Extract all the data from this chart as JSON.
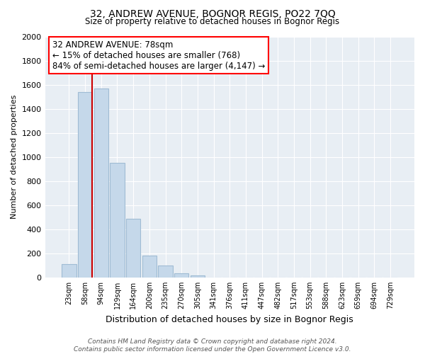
{
  "title": "32, ANDREW AVENUE, BOGNOR REGIS, PO22 7QQ",
  "subtitle": "Size of property relative to detached houses in Bognor Regis",
  "xlabel": "Distribution of detached houses by size in Bognor Regis",
  "ylabel": "Number of detached properties",
  "bar_labels": [
    "23sqm",
    "58sqm",
    "94sqm",
    "129sqm",
    "164sqm",
    "200sqm",
    "235sqm",
    "270sqm",
    "305sqm",
    "341sqm",
    "376sqm",
    "411sqm",
    "447sqm",
    "482sqm",
    "517sqm",
    "553sqm",
    "588sqm",
    "623sqm",
    "659sqm",
    "694sqm",
    "729sqm"
  ],
  "bar_values": [
    110,
    1540,
    1570,
    950,
    490,
    180,
    100,
    35,
    15,
    0,
    0,
    0,
    0,
    0,
    0,
    0,
    0,
    0,
    0,
    0,
    0
  ],
  "bar_color": "#c5d8ea",
  "bar_edge_color": "#a0bcd4",
  "vline_color": "#cc0000",
  "ylim": [
    0,
    2000
  ],
  "yticks": [
    0,
    200,
    400,
    600,
    800,
    1000,
    1200,
    1400,
    1600,
    1800,
    2000
  ],
  "annotation_line1": "32 ANDREW AVENUE: 78sqm",
  "annotation_line2": "← 15% of detached houses are smaller (768)",
  "annotation_line3": "84% of semi-detached houses are larger (4,147) →",
  "footnote": "Contains HM Land Registry data © Crown copyright and database right 2024.\nContains public sector information licensed under the Open Government Licence v3.0.",
  "background_color": "#ffffff",
  "plot_bg_color": "#e8eef4",
  "grid_color": "#ffffff"
}
